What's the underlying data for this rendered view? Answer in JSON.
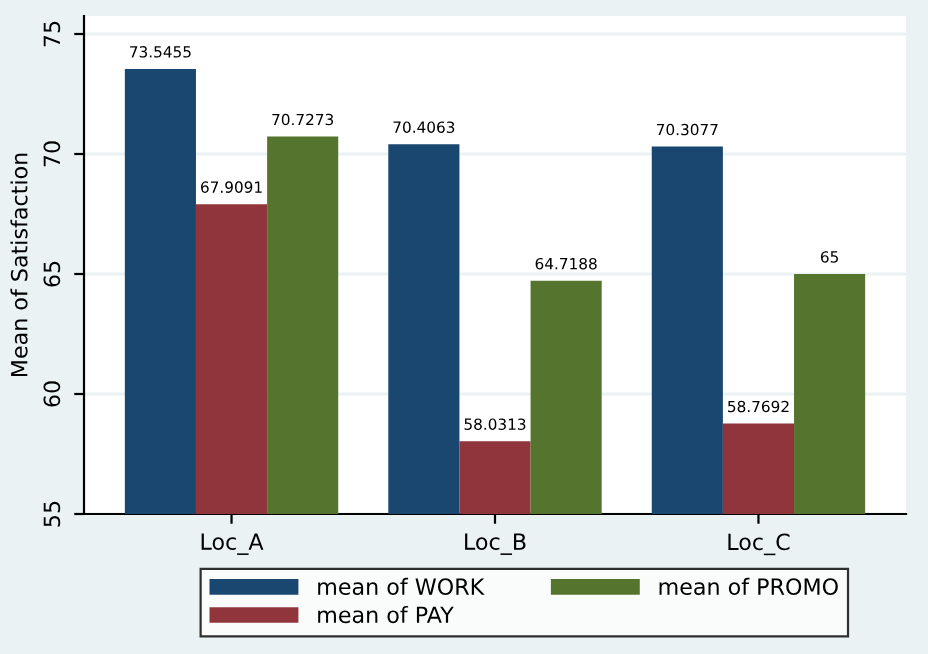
{
  "chart_data": {
    "type": "bar",
    "ylabel": "Mean of Satisfaction",
    "categories": [
      "Loc_A",
      "Loc_B",
      "Loc_C"
    ],
    "series": [
      {
        "name": "mean of WORK",
        "color": "#1a476f",
        "values": [
          73.5455,
          70.4063,
          70.3077
        ]
      },
      {
        "name": "mean of PAY",
        "color": "#90353b",
        "values": [
          67.9091,
          58.0313,
          58.7692
        ]
      },
      {
        "name": "mean of PROMO",
        "color": "#55752f",
        "values": [
          70.7273,
          64.7188,
          65
        ]
      }
    ],
    "ylim": [
      55,
      75.75
    ],
    "yticks": [
      55,
      60,
      65,
      70,
      75
    ],
    "grid": "y",
    "legend": "bottom",
    "data_labels": true
  }
}
